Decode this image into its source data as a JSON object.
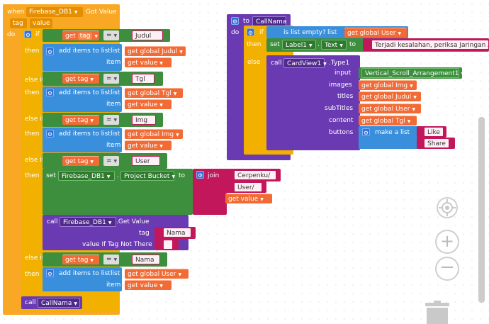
{
  "event": {
    "when": "when",
    "component": "Firebase_DB1",
    "event_name": "Got Value",
    "param1": "tag",
    "param2": "value",
    "do": "do"
  },
  "kw": {
    "if": "if",
    "then": "then",
    "else_if": "else if",
    "else": "else",
    "get": "get",
    "eq": "=",
    "add_items": "add items to list",
    "list": "list",
    "item": "item",
    "set": "set",
    "to": "to",
    "join": "join",
    "call": "call",
    "tag_arg": "tag",
    "value_if": "value If Tag Not There",
    "is_list_empty": "is list empty?",
    "list_arg": "list",
    "make_list": "make a list",
    "to_proc": "to"
  },
  "vars": {
    "tag": "tag",
    "value": "value",
    "g_judul": "global Judul",
    "g_tgl": "global Tgl",
    "g_img": "global Img",
    "g_user": "global User"
  },
  "strings": {
    "judul": "Judul",
    "tgl": "Tgl",
    "img": "Img",
    "user": "User",
    "cerpenku": "Cerpenku/",
    "user_slash": "User/",
    "nama": "Nama",
    "empty": "",
    "err": "Terjadi kesalahan, periksa Jaringan An",
    "like": "Like",
    "share": "Share"
  },
  "set_block": {
    "component": "Firebase_DB1",
    "property": "Project Bucket"
  },
  "call_block": {
    "component": "Firebase_DB1",
    "method": ".Get Value"
  },
  "call_nama": "CallNama",
  "proc": {
    "name": "CallNama",
    "label_comp": "Label1",
    "label_prop": "Text",
    "card_comp": "CardView1",
    "card_method": ".Type1",
    "input": "input",
    "images": "images",
    "titles": "titles",
    "subtitles": "subTitles",
    "content": "content",
    "buttons": "buttons",
    "arrangement": "Vertical_Scroll_Arrangement1"
  },
  "icons": {
    "gear": "gear-icon",
    "target": "target-icon",
    "zoom_in": "zoom-in-icon",
    "zoom_out": "zoom-out-icon",
    "trash": "trash-icon"
  },
  "colors": {
    "event": "#f9a825",
    "control": "#f2b100",
    "list": "#3a8fdc",
    "variable": "#f26b34",
    "component": "#3d8f3d",
    "text": "#c2185b",
    "compare": "#5b80a5",
    "procedure": "#6a3ab2"
  }
}
